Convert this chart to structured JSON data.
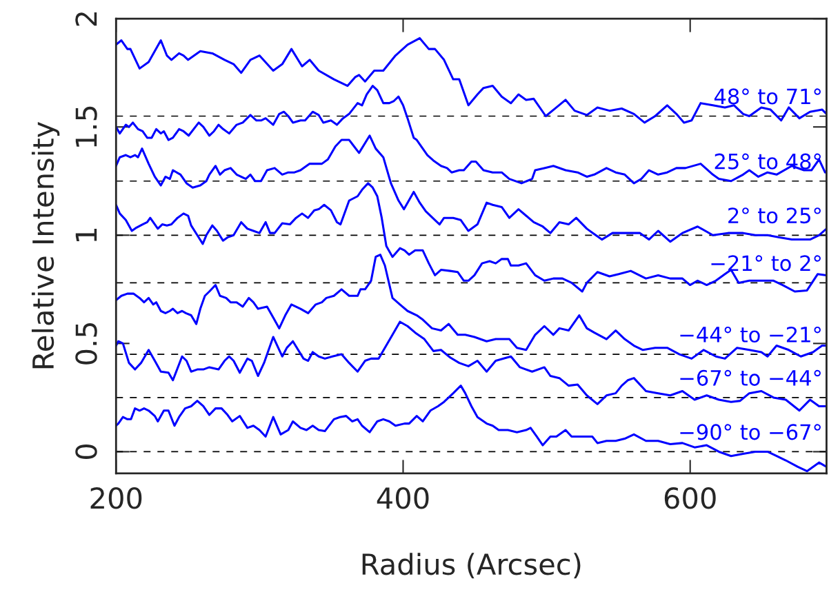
{
  "chart_data": {
    "type": "line",
    "xlabel": "Radius (Arcsec)",
    "ylabel": "Relative Intensity",
    "xlim": [
      200,
      695
    ],
    "ylim": [
      -0.1,
      2
    ],
    "xticks": [
      200,
      400,
      600
    ],
    "yticks": [
      0,
      0.5,
      1,
      1.5,
      2
    ],
    "grid": false,
    "legend": false,
    "marker": "none",
    "line_style": "solid",
    "ref_lines": [
      {
        "axis": "y",
        "value": 1.55,
        "color": "#000000",
        "line_style": "dashed"
      },
      {
        "axis": "y",
        "value": 1.25,
        "color": "#000000",
        "line_style": "dashed"
      },
      {
        "axis": "y",
        "value": 1.0,
        "color": "#000000",
        "line_style": "dashed"
      },
      {
        "axis": "y",
        "value": 0.78,
        "color": "#000000",
        "line_style": "dashed"
      },
      {
        "axis": "y",
        "value": 0.45,
        "color": "#000000",
        "line_style": "dashed"
      },
      {
        "axis": "y",
        "value": 0.25,
        "color": "#000000",
        "line_style": "dashed"
      },
      {
        "axis": "y",
        "value": 0,
        "color": "#000000",
        "line_style": "dashed"
      }
    ],
    "series": [
      {
        "name": "48° to 71°",
        "color": "#0000ff",
        "x": [
          200,
          203.7,
          207.9,
          210,
          216.4,
          222.7,
          231.2,
          235.4,
          238.6,
          243.9,
          247,
          250.2,
          258.7,
          267.1,
          275.6,
          281.9,
          287.2,
          293.6,
          299.9,
          309.5,
          315.8,
          322.2,
          329.6,
          334.9,
          341.2,
          351.8,
          361.3,
          366.6,
          369.3,
          373.5,
          379.9,
          386.2,
          394.7,
          403.1,
          411.6,
          417.9,
          422.2,
          428.5,
          434.9,
          439.1,
          445.5,
          451.8,
          456,
          462.4,
          468.7,
          475.1,
          480.4,
          485.7,
          491,
          499.4,
          506.8,
          513.2,
          519.5,
          528,
          535.4,
          543.8,
          552.3,
          560.8,
          568.2,
          575.6,
          584,
          590.4,
          595.7,
          601,
          607.3,
          615.8,
          624.2,
          630.6,
          636.9,
          641.2,
          649.6,
          656,
          663.4,
          668.7,
          676.1,
          683.5,
          692,
          695
        ],
        "values": [
          1.88,
          1.9,
          1.86,
          1.86,
          1.77,
          1.8,
          1.9,
          1.83,
          1.81,
          1.84,
          1.83,
          1.81,
          1.85,
          1.84,
          1.81,
          1.79,
          1.75,
          1.81,
          1.83,
          1.76,
          1.79,
          1.86,
          1.78,
          1.81,
          1.76,
          1.72,
          1.69,
          1.73,
          1.74,
          1.71,
          1.76,
          1.76,
          1.83,
          1.88,
          1.91,
          1.86,
          1.86,
          1.81,
          1.72,
          1.72,
          1.6,
          1.65,
          1.68,
          1.69,
          1.64,
          1.61,
          1.65,
          1.625,
          1.63,
          1.55,
          1.59,
          1.625,
          1.575,
          1.555,
          1.59,
          1.575,
          1.585,
          1.56,
          1.52,
          1.55,
          1.6,
          1.56,
          1.52,
          1.53,
          1.61,
          1.6,
          1.59,
          1.6,
          1.56,
          1.55,
          1.59,
          1.58,
          1.53,
          1.59,
          1.54,
          1.57,
          1.58,
          1.56
        ]
      },
      {
        "name": "25° to 48°",
        "color": "#0000ff",
        "x": [
          200,
          202.6,
          206.8,
          209,
          211.7,
          215.3,
          218.5,
          221.7,
          224.8,
          228,
          231.2,
          233.3,
          236.5,
          239.6,
          243.9,
          247,
          250.6,
          257.6,
          260.8,
          265,
          268.2,
          271.4,
          274.6,
          278.8,
          284,
          288.3,
          293.6,
          297.8,
          301,
          304.2,
          309.5,
          313.7,
          316.9,
          320,
          323.2,
          328.5,
          331.7,
          337,
          341.2,
          344.4,
          349.7,
          353.9,
          358.1,
          362.4,
          368.3,
          371.4,
          374.6,
          378.8,
          382,
          386.2,
          390.4,
          393.6,
          396.8,
          400,
          403.1,
          407.4,
          409.5,
          413.7,
          416.9,
          421.1,
          426.4,
          430.6,
          433.8,
          439.1,
          442.3,
          447.6,
          450.7,
          456,
          462.4,
          468.7,
          474,
          482.5,
          489.9,
          492,
          498.4,
          504.7,
          513.2,
          521.6,
          528,
          533.2,
          541.7,
          548.1,
          554.4,
          560.8,
          566,
          571.3,
          577.7,
          584,
          590.4,
          596.7,
          607.3,
          615.8,
          620,
          628.5,
          636.9,
          641.2,
          647.5,
          653.9,
          660.2,
          670.8,
          679.3,
          684.5,
          689.8,
          694
        ],
        "values": [
          1.5,
          1.47,
          1.51,
          1.5,
          1.52,
          1.49,
          1.48,
          1.45,
          1.45,
          1.49,
          1.47,
          1.48,
          1.44,
          1.45,
          1.49,
          1.48,
          1.46,
          1.52,
          1.5,
          1.46,
          1.48,
          1.51,
          1.49,
          1.47,
          1.51,
          1.52,
          1.555,
          1.53,
          1.53,
          1.54,
          1.51,
          1.56,
          1.57,
          1.55,
          1.52,
          1.53,
          1.53,
          1.57,
          1.555,
          1.52,
          1.53,
          1.51,
          1.54,
          1.56,
          1.61,
          1.6,
          1.65,
          1.69,
          1.67,
          1.61,
          1.61,
          1.62,
          1.64,
          1.6,
          1.54,
          1.45,
          1.44,
          1.4,
          1.37,
          1.345,
          1.32,
          1.31,
          1.29,
          1.3,
          1.3,
          1.34,
          1.34,
          1.3,
          1.29,
          1.29,
          1.26,
          1.24,
          1.26,
          1.3,
          1.31,
          1.32,
          1.3,
          1.29,
          1.27,
          1.28,
          1.31,
          1.29,
          1.28,
          1.24,
          1.26,
          1.3,
          1.28,
          1.29,
          1.31,
          1.31,
          1.33,
          1.28,
          1.26,
          1.25,
          1.28,
          1.3,
          1.27,
          1.29,
          1.28,
          1.32,
          1.3,
          1.3,
          1.35,
          1.29
        ]
      },
      {
        "name": "2° to 25°",
        "color": "#0000ff",
        "x": [
          200,
          202.6,
          206.8,
          210,
          213.2,
          215.3,
          218.1,
          222.7,
          227,
          231.2,
          234.4,
          237.5,
          239.6,
          244.9,
          249.1,
          253.4,
          258.7,
          262.9,
          265,
          269.3,
          272.4,
          275.6,
          279.8,
          284,
          290.4,
          293.6,
          296.8,
          301,
          305.2,
          310.5,
          315.8,
          320,
          324.3,
          328.5,
          334.9,
          343.4,
          347.6,
          352.8,
          357.1,
          362.4,
          369.3,
          376.7,
          380.9,
          386.2,
          391.5,
          396.8,
          400.6,
          407.4,
          411.6,
          415.8,
          422.2,
          425.4,
          428.5,
          434.9,
          440.2,
          445.5,
          451.8,
          458.2,
          462.4,
          468.7,
          474,
          480.4,
          485.7,
          491,
          497.3,
          502.6,
          508.9,
          515.3,
          520.6,
          528,
          532.2,
          538.5,
          545.9,
          554.4,
          565,
          571.3,
          577.7,
          586.1,
          594.6,
          605.2,
          615.8,
          626.4,
          636.9,
          645.4,
          653.9,
          662.3,
          670.8,
          683.5,
          689.8,
          695
        ],
        "values": [
          1.32,
          1.36,
          1.37,
          1.36,
          1.37,
          1.36,
          1.4,
          1.33,
          1.27,
          1.23,
          1.27,
          1.26,
          1.3,
          1.28,
          1.24,
          1.22,
          1.23,
          1.25,
          1.28,
          1.32,
          1.28,
          1.3,
          1.31,
          1.28,
          1.26,
          1.28,
          1.25,
          1.25,
          1.3,
          1.31,
          1.28,
          1.29,
          1.29,
          1.3,
          1.33,
          1.33,
          1.35,
          1.41,
          1.44,
          1.44,
          1.38,
          1.46,
          1.4,
          1.36,
          1.24,
          1.16,
          1.12,
          1.2,
          1.15,
          1.11,
          1.07,
          1.05,
          1.08,
          1.08,
          1.07,
          1.02,
          1.05,
          1.15,
          1.14,
          1.13,
          1.08,
          1.12,
          1.09,
          1.06,
          1.04,
          1.01,
          1.06,
          1.05,
          1.08,
          1.03,
          1.01,
          0.98,
          1.01,
          1.01,
          1.01,
          0.98,
          1.02,
          0.97,
          1.01,
          1.04,
          1.0,
          1.01,
          1.01,
          1.0,
          1.0,
          0.99,
          0.98,
          0.98,
          1.0,
          1.03
        ]
      },
      {
        "name": "−21° to 2°",
        "color": "#0000ff",
        "x": [
          200,
          202.6,
          206.8,
          211,
          214.2,
          218.5,
          221.7,
          223.8,
          229.1,
          232.2,
          235.4,
          238.6,
          242.8,
          247,
          250.2,
          252.3,
          256.6,
          260.4,
          262.9,
          267.1,
          270.3,
          274.5,
          277.7,
          281.9,
          287.2,
          291.5,
          295.7,
          299.9,
          304.2,
          307.3,
          310.5,
          315.8,
          321.1,
          325.4,
          329.6,
          333.8,
          338.1,
          341.2,
          345,
          349.7,
          353.9,
          356.4,
          362.4,
          368.3,
          371.4,
          375.6,
          378.8,
          382,
          385.1,
          388.3,
          392.6,
          397.8,
          401,
          404.2,
          408.4,
          413.7,
          417.9,
          422.2,
          426.4,
          432.8,
          438,
          442.3,
          445.5,
          449.7,
          455,
          460.3,
          464.5,
          468.7,
          473,
          475.1,
          480.4,
          485.7,
          492,
          498.4,
          504.7,
          511,
          517.4,
          524.8,
          528,
          535.4,
          543.8,
          550.2,
          558.6,
          569.2,
          577.7,
          586.1,
          594.6,
          599.9,
          605.2,
          611.5,
          617.9,
          624.2,
          628.5,
          633.8,
          641.2,
          649.6,
          658.1,
          664.4,
          672.9,
          681.4,
          688.8,
          695
        ],
        "values": [
          1.14,
          1.1,
          1.07,
          1.02,
          1.035,
          1.05,
          1.06,
          1.08,
          1.03,
          1.05,
          1.045,
          1.05,
          1.08,
          1.1,
          1.09,
          1.045,
          1.0,
          0.96,
          1.0,
          1.045,
          1.02,
          0.975,
          0.99,
          1.0,
          1.06,
          1.03,
          1.02,
          1.01,
          1.06,
          1.01,
          1.01,
          1.055,
          1.05,
          1.08,
          1.1,
          1.08,
          1.115,
          1.12,
          1.14,
          1.115,
          1.06,
          1.05,
          1.16,
          1.18,
          1.21,
          1.24,
          1.22,
          1.18,
          1.08,
          0.95,
          0.9,
          0.94,
          0.93,
          0.91,
          0.93,
          0.93,
          0.87,
          0.815,
          0.84,
          0.835,
          0.83,
          0.79,
          0.79,
          0.815,
          0.87,
          0.88,
          0.87,
          0.89,
          0.89,
          0.86,
          0.86,
          0.87,
          0.815,
          0.79,
          0.8,
          0.8,
          0.78,
          0.74,
          0.78,
          0.83,
          0.81,
          0.82,
          0.835,
          0.8,
          0.815,
          0.8,
          0.8,
          0.77,
          0.79,
          0.77,
          0.79,
          0.82,
          0.84,
          0.78,
          0.79,
          0.79,
          0.79,
          0.77,
          0.74,
          0.745,
          0.82,
          0.815
        ]
      },
      {
        "name": "−44° to −21°",
        "color": "#0000ff",
        "x": [
          200,
          203.7,
          207.9,
          212.1,
          216.4,
          219.5,
          222.7,
          225.9,
          228,
          231.2,
          234.4,
          237.5,
          239.6,
          242.8,
          246,
          248.6,
          252.3,
          255.9,
          258.7,
          261.9,
          265,
          269.3,
          272.4,
          276.7,
          279.8,
          284,
          288.3,
          292.5,
          295.7,
          298.9,
          305.2,
          309.5,
          313.7,
          317.9,
          322.2,
          328.5,
          333.8,
          339.1,
          343.4,
          346.5,
          351.8,
          357.1,
          362.4,
          368.3,
          370.3,
          373.5,
          377.7,
          380.9,
          384.1,
          387.3,
          392.6,
          397.8,
          403.1,
          409.5,
          413.7,
          420.1,
          426.4,
          431.7,
          438,
          443.3,
          449.7,
          458.2,
          464.5,
          468.7,
          474,
          479.3,
          485.7,
          492,
          498.4,
          504.7,
          508.9,
          515.3,
          522.7,
          528,
          533.2,
          541.7,
          548.1,
          554.4,
          560.8,
          567.1,
          575.6,
          584,
          592.5,
          601,
          609.4,
          617.9,
          624.2,
          632.7,
          641.2,
          649.6,
          653.9,
          660.2,
          668.7,
          677.1,
          685.6,
          691.9,
          695
        ],
        "values": [
          0.7,
          0.72,
          0.73,
          0.73,
          0.71,
          0.69,
          0.71,
          0.68,
          0.69,
          0.65,
          0.64,
          0.65,
          0.66,
          0.64,
          0.65,
          0.64,
          0.63,
          0.59,
          0.66,
          0.72,
          0.74,
          0.77,
          0.72,
          0.71,
          0.69,
          0.69,
          0.67,
          0.71,
          0.69,
          0.66,
          0.67,
          0.62,
          0.57,
          0.63,
          0.68,
          0.66,
          0.64,
          0.68,
          0.69,
          0.71,
          0.72,
          0.75,
          0.72,
          0.72,
          0.75,
          0.75,
          0.79,
          0.9,
          0.91,
          0.86,
          0.71,
          0.68,
          0.65,
          0.63,
          0.61,
          0.57,
          0.56,
          0.59,
          0.54,
          0.54,
          0.53,
          0.51,
          0.52,
          0.52,
          0.52,
          0.48,
          0.47,
          0.54,
          0.58,
          0.54,
          0.57,
          0.56,
          0.63,
          0.57,
          0.55,
          0.52,
          0.56,
          0.52,
          0.49,
          0.47,
          0.48,
          0.48,
          0.45,
          0.43,
          0.47,
          0.44,
          0.43,
          0.48,
          0.47,
          0.46,
          0.44,
          0.49,
          0.47,
          0.44,
          0.46,
          0.49,
          0.49
        ]
      },
      {
        "name": "−67° to −44°",
        "color": "#0000ff",
        "x": [
          200,
          201.6,
          204.8,
          209,
          213.2,
          217.4,
          222.7,
          227,
          231.2,
          236.5,
          239.6,
          246,
          249.1,
          252.3,
          256.6,
          260.8,
          265,
          271.4,
          275.6,
          278.8,
          281.9,
          286.2,
          291.5,
          294.6,
          298.9,
          303.1,
          309.5,
          315.8,
          319,
          323.2,
          330.6,
          333.8,
          337,
          341.2,
          345.5,
          350.7,
          357.1,
          362.4,
          368.3,
          373.5,
          377.7,
          383,
          387.3,
          392.6,
          397.8,
          403.1,
          408.4,
          414.8,
          421.1,
          426.4,
          432.8,
          439.1,
          445.5,
          451.8,
          458.2,
          464.5,
          475.1,
          481.4,
          489.9,
          498.4,
          502.6,
          508.9,
          515.3,
          521.6,
          528,
          535.4,
          541.7,
          548.1,
          552.3,
          556.5,
          560.8,
          569.2,
          577.7,
          586.1,
          594.6,
          603.1,
          611.5,
          620,
          628.5,
          634.8,
          641.2,
          649.6,
          658.1,
          666.6,
          676.1,
          683.5,
          689.8,
          695
        ],
        "values": [
          0.49,
          0.51,
          0.5,
          0.41,
          0.38,
          0.41,
          0.47,
          0.42,
          0.37,
          0.365,
          0.33,
          0.44,
          0.42,
          0.37,
          0.38,
          0.38,
          0.39,
          0.38,
          0.42,
          0.44,
          0.42,
          0.365,
          0.43,
          0.42,
          0.35,
          0.41,
          0.53,
          0.44,
          0.48,
          0.51,
          0.43,
          0.42,
          0.46,
          0.44,
          0.43,
          0.44,
          0.45,
          0.41,
          0.37,
          0.42,
          0.43,
          0.43,
          0.48,
          0.54,
          0.6,
          0.58,
          0.55,
          0.52,
          0.465,
          0.47,
          0.435,
          0.41,
          0.395,
          0.42,
          0.37,
          0.42,
          0.44,
          0.39,
          0.37,
          0.39,
          0.35,
          0.34,
          0.305,
          0.31,
          0.26,
          0.22,
          0.26,
          0.27,
          0.305,
          0.33,
          0.34,
          0.28,
          0.27,
          0.26,
          0.28,
          0.24,
          0.26,
          0.24,
          0.23,
          0.235,
          0.27,
          0.28,
          0.25,
          0.24,
          0.19,
          0.24,
          0.21,
          0.21
        ]
      },
      {
        "name": "−90° to −67°",
        "color": "#0000ff",
        "x": [
          200,
          201.6,
          204.8,
          207.9,
          210.4,
          213.2,
          216.4,
          219.5,
          222.7,
          227,
          229.1,
          233.3,
          236.5,
          240.7,
          243.9,
          248.1,
          252.3,
          256.6,
          260.8,
          265,
          269.3,
          273.5,
          277.7,
          280.9,
          286.2,
          291.5,
          295.7,
          299.9,
          304.2,
          309.5,
          314.7,
          320,
          323.2,
          328.5,
          332.7,
          337,
          341.2,
          345.5,
          351.8,
          356,
          360.3,
          364.5,
          368.3,
          371.4,
          376.7,
          382,
          386.2,
          390.4,
          394.7,
          401,
          404.2,
          409.5,
          413.7,
          419,
          424.3,
          428.5,
          434.9,
          440.2,
          443.3,
          447.6,
          451.8,
          458.2,
          462.4,
          466.6,
          473,
          479.3,
          485.7,
          488.8,
          493.1,
          497.3,
          502.6,
          506.8,
          513.2,
          517.4,
          523.7,
          531.8,
          535.4,
          541.7,
          548.1,
          554.4,
          560.8,
          569.2,
          577.7,
          586.1,
          594.6,
          603.1,
          611.5,
          620,
          628.5,
          636.9,
          645.4,
          653.9,
          660.2,
          666.6,
          675,
          681.4,
          689.8,
          695
        ],
        "values": [
          0.12,
          0.13,
          0.16,
          0.15,
          0.15,
          0.2,
          0.19,
          0.2,
          0.19,
          0.165,
          0.14,
          0.19,
          0.19,
          0.12,
          0.16,
          0.2,
          0.21,
          0.235,
          0.21,
          0.17,
          0.2,
          0.2,
          0.17,
          0.14,
          0.165,
          0.11,
          0.12,
          0.1,
          0.07,
          0.16,
          0.08,
          0.1,
          0.14,
          0.11,
          0.1,
          0.12,
          0.1,
          0.095,
          0.15,
          0.16,
          0.165,
          0.14,
          0.15,
          0.12,
          0.09,
          0.14,
          0.15,
          0.14,
          0.12,
          0.13,
          0.13,
          0.165,
          0.14,
          0.19,
          0.21,
          0.23,
          0.27,
          0.305,
          0.27,
          0.21,
          0.16,
          0.13,
          0.12,
          0.1,
          0.1,
          0.09,
          0.1,
          0.11,
          0.07,
          0.03,
          0.07,
          0.07,
          0.1,
          0.07,
          0.07,
          0.07,
          0.04,
          0.05,
          0.05,
          0.06,
          0.08,
          0.05,
          0.05,
          0.035,
          0.04,
          0.02,
          0.03,
          0.0,
          -0.02,
          -0.01,
          0.0,
          0.0,
          -0.02,
          -0.04,
          -0.07,
          -0.09,
          -0.05,
          -0.07
        ]
      }
    ]
  }
}
